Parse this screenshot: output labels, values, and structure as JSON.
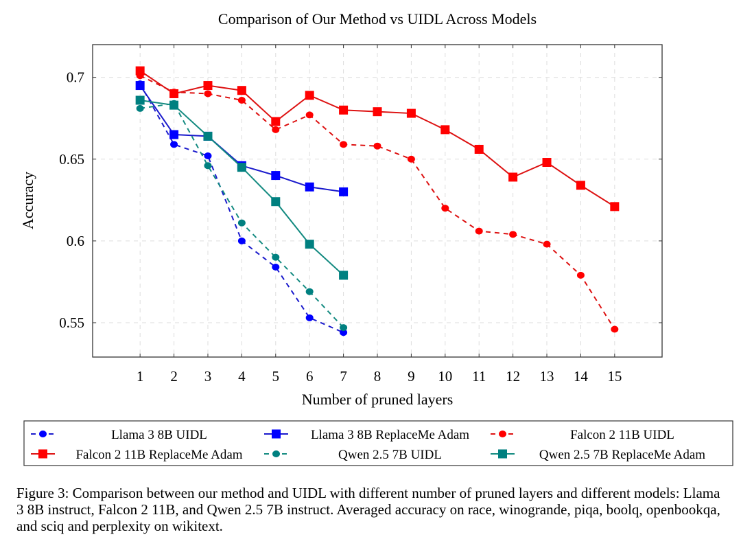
{
  "chart_data": {
    "type": "line",
    "title": "Comparison of Our Method vs UIDL Across Models",
    "xlabel": "Number of pruned layers",
    "ylabel": "Accuracy",
    "xlim": [
      -0.4,
      16.4
    ],
    "ylim": [
      0.529,
      0.72
    ],
    "xticks": [
      1,
      2,
      3,
      4,
      5,
      6,
      7,
      8,
      9,
      10,
      11,
      12,
      13,
      14,
      15
    ],
    "yticks": [
      0.55,
      0.6,
      0.65,
      0.7
    ],
    "ytick_labels": [
      "0.55",
      "0.6",
      "0.65",
      "0.7"
    ],
    "grid": true,
    "legend_placement": "below",
    "series": [
      {
        "name": "Llama 3 8B UIDL",
        "color": "#0000ff",
        "style": "dashed",
        "marker": "circle",
        "x": [
          1,
          2,
          3,
          4,
          5,
          6,
          7
        ],
        "y": [
          0.696,
          0.659,
          0.652,
          0.6,
          0.584,
          0.553,
          0.544
        ]
      },
      {
        "name": "Llama 3 8B ReplaceMe Adam",
        "color": "#0000ff",
        "style": "solid",
        "marker": "square",
        "x": [
          1,
          2,
          3,
          4,
          5,
          6,
          7
        ],
        "y": [
          0.695,
          0.665,
          0.664,
          0.646,
          0.64,
          0.633,
          0.63
        ]
      },
      {
        "name": "Falcon 2 11B UIDL",
        "color": "#ff0000",
        "style": "dashed",
        "marker": "circle",
        "x": [
          1,
          2,
          3,
          4,
          5,
          6,
          7,
          8,
          9,
          10,
          11,
          12,
          13,
          14,
          15
        ],
        "y": [
          0.701,
          0.691,
          0.69,
          0.686,
          0.668,
          0.677,
          0.659,
          0.658,
          0.65,
          0.62,
          0.606,
          0.604,
          0.598,
          0.579,
          0.546
        ]
      },
      {
        "name": "Falcon 2 11B ReplaceMe Adam",
        "color": "#ff0000",
        "style": "solid",
        "marker": "square",
        "x": [
          1,
          2,
          3,
          4,
          5,
          6,
          7,
          8,
          9,
          10,
          11,
          12,
          13,
          14,
          15
        ],
        "y": [
          0.704,
          0.69,
          0.695,
          0.692,
          0.673,
          0.689,
          0.68,
          0.679,
          0.678,
          0.668,
          0.656,
          0.639,
          0.648,
          0.634,
          0.621
        ]
      },
      {
        "name": "Qwen 2.5 7B UIDL",
        "color": "#008080",
        "style": "dashed",
        "marker": "circle",
        "x": [
          1,
          2,
          3,
          4,
          5,
          6,
          7
        ],
        "y": [
          0.681,
          0.684,
          0.646,
          0.611,
          0.59,
          0.569,
          0.547
        ]
      },
      {
        "name": "Qwen 2.5 7B ReplaceMe Adam",
        "color": "#008080",
        "style": "solid",
        "marker": "square",
        "x": [
          1,
          2,
          3,
          4,
          5,
          6,
          7
        ],
        "y": [
          0.686,
          0.683,
          0.664,
          0.645,
          0.624,
          0.598,
          0.579
        ]
      }
    ]
  },
  "caption": "Figure 3:  Comparison between our method and UIDL with different number of pruned layers and different models: Llama 3 8B instruct, Falcon 2 11B, and Qwen 2.5 7B instruct. Averaged accuracy on race, winogrande, piqa, boolq, openbookqa, and sciq and perplexity on wikitext."
}
